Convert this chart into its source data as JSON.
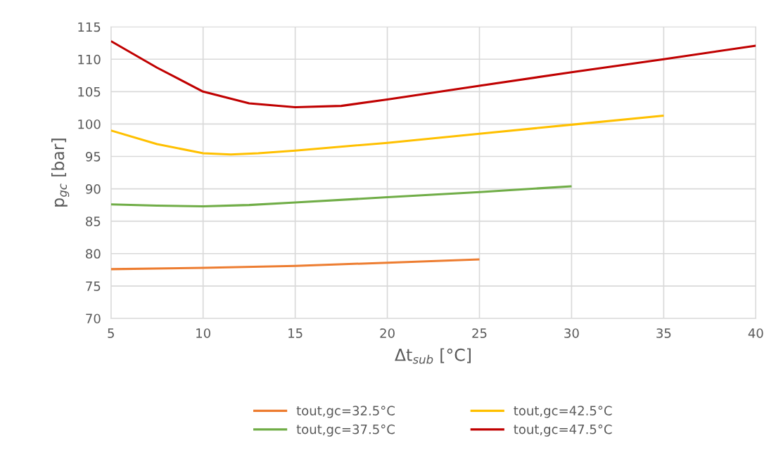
{
  "chart_data": {
    "type": "line",
    "xlabel": "Δt$_{sub}$ [°C]",
    "ylabel": "p$_{gc}$ [bar]",
    "xlim": [
      5,
      40
    ],
    "xticks": [
      5,
      10,
      15,
      20,
      25,
      30,
      35,
      40
    ],
    "ylim": [
      70,
      115
    ],
    "yticks": [
      70,
      75,
      80,
      85,
      90,
      95,
      100,
      105,
      110,
      115
    ],
    "grid": true,
    "legend": "bottom",
    "marker": "none",
    "line_style": "solid",
    "series": [
      {
        "name": "tout,gc=32.5°C",
        "color": "#ed7d31",
        "x": [
          5,
          10,
          15,
          20,
          25
        ],
        "values": [
          77.6,
          77.8,
          78.1,
          78.6,
          79.1
        ]
      },
      {
        "name": "tout,gc=37.5°C",
        "color": "#70ad47",
        "x": [
          5,
          7.5,
          10,
          12.5,
          15,
          20,
          25,
          30
        ],
        "values": [
          87.6,
          87.4,
          87.3,
          87.5,
          87.9,
          88.7,
          89.5,
          90.4
        ]
      },
      {
        "name": "tout,gc=42.5°C",
        "color": "#ffc000",
        "x": [
          5,
          7.5,
          10,
          11.5,
          13,
          15,
          20,
          25,
          30,
          35
        ],
        "values": [
          99.0,
          96.9,
          95.5,
          95.3,
          95.5,
          95.9,
          97.1,
          98.5,
          99.9,
          101.3
        ]
      },
      {
        "name": "tout,gc=47.5°C",
        "color": "#c00000",
        "x": [
          5,
          7.5,
          10,
          12.5,
          15,
          17.5,
          20,
          25,
          30,
          35,
          40
        ],
        "values": [
          112.8,
          108.7,
          105.0,
          103.2,
          102.6,
          102.8,
          103.8,
          105.9,
          108.0,
          110.0,
          112.1
        ]
      }
    ]
  }
}
